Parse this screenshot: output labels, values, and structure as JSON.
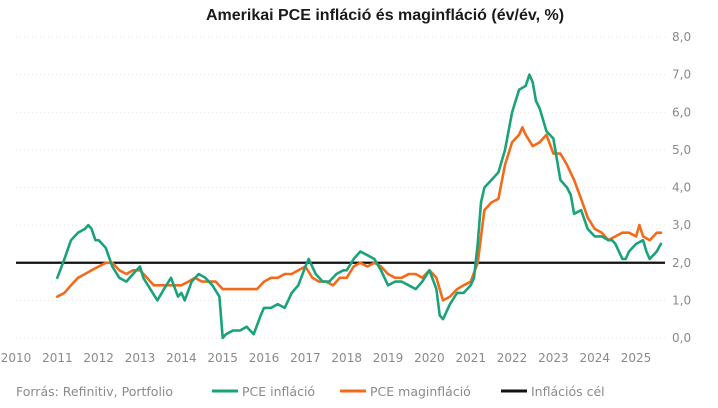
{
  "chart_data": {
    "type": "line",
    "title": "Amerikai PCE infláció és maginfláció (év/év, %)",
    "source": "Forrás: Refinitiv, Portfolio",
    "xlabel": "",
    "ylabel": "",
    "x_ticks": [
      "2010",
      "2011",
      "2012",
      "2013",
      "2014",
      "2015",
      "2016",
      "2017",
      "2018",
      "2019",
      "2020",
      "2021",
      "2022",
      "2023",
      "2024",
      "2025"
    ],
    "y_ticks": [
      "0,0",
      "1,0",
      "2,0",
      "3,0",
      "4,0",
      "5,0",
      "6,0",
      "7,0",
      "8,0"
    ],
    "xlim": [
      2010.0,
      2025.7
    ],
    "ylim": [
      0,
      8
    ],
    "y_axis_position": "right",
    "grid": true,
    "legend_position": "bottom",
    "reference_line": {
      "name": "Inflációs cél",
      "value": 2.0,
      "color": "#111111"
    },
    "series": [
      {
        "name": "PCE infláció",
        "color": "#1aa37a",
        "points": [
          [
            2011.0,
            1.6
          ],
          [
            2011.17,
            2.1
          ],
          [
            2011.33,
            2.6
          ],
          [
            2011.5,
            2.8
          ],
          [
            2011.67,
            2.9
          ],
          [
            2011.75,
            3.0
          ],
          [
            2011.83,
            2.9
          ],
          [
            2011.92,
            2.6
          ],
          [
            2012.0,
            2.6
          ],
          [
            2012.17,
            2.4
          ],
          [
            2012.33,
            1.9
          ],
          [
            2012.5,
            1.6
          ],
          [
            2012.67,
            1.5
          ],
          [
            2012.83,
            1.7
          ],
          [
            2013.0,
            1.9
          ],
          [
            2013.08,
            1.6
          ],
          [
            2013.25,
            1.3
          ],
          [
            2013.42,
            1.0
          ],
          [
            2013.58,
            1.3
          ],
          [
            2013.75,
            1.6
          ],
          [
            2013.92,
            1.1
          ],
          [
            2014.0,
            1.2
          ],
          [
            2014.08,
            1.0
          ],
          [
            2014.25,
            1.5
          ],
          [
            2014.42,
            1.7
          ],
          [
            2014.58,
            1.6
          ],
          [
            2014.75,
            1.4
          ],
          [
            2014.92,
            1.1
          ],
          [
            2015.0,
            0.0
          ],
          [
            2015.08,
            0.1
          ],
          [
            2015.25,
            0.2
          ],
          [
            2015.42,
            0.2
          ],
          [
            2015.58,
            0.3
          ],
          [
            2015.75,
            0.1
          ],
          [
            2015.92,
            0.6
          ],
          [
            2016.0,
            0.8
          ],
          [
            2016.17,
            0.8
          ],
          [
            2016.33,
            0.9
          ],
          [
            2016.5,
            0.8
          ],
          [
            2016.67,
            1.2
          ],
          [
            2016.83,
            1.4
          ],
          [
            2017.0,
            1.9
          ],
          [
            2017.08,
            2.1
          ],
          [
            2017.25,
            1.7
          ],
          [
            2017.42,
            1.5
          ],
          [
            2017.58,
            1.5
          ],
          [
            2017.75,
            1.7
          ],
          [
            2017.92,
            1.8
          ],
          [
            2018.0,
            1.8
          ],
          [
            2018.17,
            2.1
          ],
          [
            2018.33,
            2.3
          ],
          [
            2018.5,
            2.2
          ],
          [
            2018.67,
            2.1
          ],
          [
            2018.83,
            1.8
          ],
          [
            2019.0,
            1.4
          ],
          [
            2019.17,
            1.5
          ],
          [
            2019.33,
            1.5
          ],
          [
            2019.5,
            1.4
          ],
          [
            2019.67,
            1.3
          ],
          [
            2019.83,
            1.5
          ],
          [
            2020.0,
            1.8
          ],
          [
            2020.17,
            1.3
          ],
          [
            2020.25,
            0.6
          ],
          [
            2020.33,
            0.5
          ],
          [
            2020.5,
            0.9
          ],
          [
            2020.67,
            1.2
          ],
          [
            2020.83,
            1.2
          ],
          [
            2021.0,
            1.4
          ],
          [
            2021.08,
            1.6
          ],
          [
            2021.17,
            2.5
          ],
          [
            2021.25,
            3.6
          ],
          [
            2021.33,
            4.0
          ],
          [
            2021.5,
            4.2
          ],
          [
            2021.67,
            4.4
          ],
          [
            2021.83,
            5.0
          ],
          [
            2022.0,
            6.0
          ],
          [
            2022.17,
            6.6
          ],
          [
            2022.33,
            6.7
          ],
          [
            2022.42,
            7.0
          ],
          [
            2022.5,
            6.8
          ],
          [
            2022.58,
            6.3
          ],
          [
            2022.67,
            6.1
          ],
          [
            2022.83,
            5.5
          ],
          [
            2023.0,
            5.3
          ],
          [
            2023.17,
            4.2
          ],
          [
            2023.33,
            4.0
          ],
          [
            2023.42,
            3.8
          ],
          [
            2023.5,
            3.3
          ],
          [
            2023.67,
            3.4
          ],
          [
            2023.83,
            2.9
          ],
          [
            2024.0,
            2.7
          ],
          [
            2024.17,
            2.7
          ],
          [
            2024.33,
            2.6
          ],
          [
            2024.42,
            2.6
          ],
          [
            2024.5,
            2.5
          ],
          [
            2024.67,
            2.1
          ],
          [
            2024.75,
            2.1
          ],
          [
            2024.83,
            2.3
          ],
          [
            2025.0,
            2.5
          ],
          [
            2025.17,
            2.6
          ],
          [
            2025.25,
            2.3
          ],
          [
            2025.33,
            2.1
          ],
          [
            2025.5,
            2.3
          ],
          [
            2025.6,
            2.5
          ]
        ]
      },
      {
        "name": "PCE maginfláció",
        "color": "#f26a1b",
        "points": [
          [
            2011.0,
            1.1
          ],
          [
            2011.17,
            1.2
          ],
          [
            2011.33,
            1.4
          ],
          [
            2011.5,
            1.6
          ],
          [
            2011.67,
            1.7
          ],
          [
            2011.83,
            1.8
          ],
          [
            2012.0,
            1.9
          ],
          [
            2012.17,
            2.0
          ],
          [
            2012.33,
            2.0
          ],
          [
            2012.5,
            1.8
          ],
          [
            2012.67,
            1.7
          ],
          [
            2012.83,
            1.8
          ],
          [
            2013.0,
            1.8
          ],
          [
            2013.17,
            1.6
          ],
          [
            2013.33,
            1.4
          ],
          [
            2013.5,
            1.4
          ],
          [
            2013.67,
            1.4
          ],
          [
            2013.83,
            1.4
          ],
          [
            2014.0,
            1.4
          ],
          [
            2014.17,
            1.5
          ],
          [
            2014.33,
            1.6
          ],
          [
            2014.5,
            1.5
          ],
          [
            2014.67,
            1.5
          ],
          [
            2014.83,
            1.5
          ],
          [
            2015.0,
            1.3
          ],
          [
            2015.17,
            1.3
          ],
          [
            2015.33,
            1.3
          ],
          [
            2015.5,
            1.3
          ],
          [
            2015.67,
            1.3
          ],
          [
            2015.83,
            1.3
          ],
          [
            2016.0,
            1.5
          ],
          [
            2016.17,
            1.6
          ],
          [
            2016.33,
            1.6
          ],
          [
            2016.5,
            1.7
          ],
          [
            2016.67,
            1.7
          ],
          [
            2016.83,
            1.8
          ],
          [
            2017.0,
            1.9
          ],
          [
            2017.17,
            1.6
          ],
          [
            2017.33,
            1.5
          ],
          [
            2017.5,
            1.5
          ],
          [
            2017.67,
            1.4
          ],
          [
            2017.83,
            1.6
          ],
          [
            2018.0,
            1.6
          ],
          [
            2018.17,
            1.9
          ],
          [
            2018.33,
            2.0
          ],
          [
            2018.5,
            1.9
          ],
          [
            2018.67,
            2.0
          ],
          [
            2018.83,
            1.9
          ],
          [
            2019.0,
            1.7
          ],
          [
            2019.17,
            1.6
          ],
          [
            2019.33,
            1.6
          ],
          [
            2019.5,
            1.7
          ],
          [
            2019.67,
            1.7
          ],
          [
            2019.83,
            1.6
          ],
          [
            2020.0,
            1.8
          ],
          [
            2020.17,
            1.6
          ],
          [
            2020.33,
            1.0
          ],
          [
            2020.5,
            1.1
          ],
          [
            2020.67,
            1.3
          ],
          [
            2020.83,
            1.4
          ],
          [
            2021.0,
            1.5
          ],
          [
            2021.17,
            2.0
          ],
          [
            2021.33,
            3.4
          ],
          [
            2021.5,
            3.6
          ],
          [
            2021.67,
            3.7
          ],
          [
            2021.83,
            4.6
          ],
          [
            2022.0,
            5.2
          ],
          [
            2022.17,
            5.4
          ],
          [
            2022.25,
            5.6
          ],
          [
            2022.33,
            5.4
          ],
          [
            2022.5,
            5.1
          ],
          [
            2022.67,
            5.2
          ],
          [
            2022.83,
            5.4
          ],
          [
            2023.0,
            4.9
          ],
          [
            2023.17,
            4.9
          ],
          [
            2023.33,
            4.6
          ],
          [
            2023.5,
            4.2
          ],
          [
            2023.67,
            3.7
          ],
          [
            2023.83,
            3.2
          ],
          [
            2024.0,
            2.9
          ],
          [
            2024.17,
            2.8
          ],
          [
            2024.33,
            2.6
          ],
          [
            2024.5,
            2.7
          ],
          [
            2024.67,
            2.8
          ],
          [
            2024.83,
            2.8
          ],
          [
            2025.0,
            2.7
          ],
          [
            2025.08,
            3.0
          ],
          [
            2025.17,
            2.7
          ],
          [
            2025.33,
            2.6
          ],
          [
            2025.5,
            2.8
          ],
          [
            2025.6,
            2.8
          ]
        ]
      }
    ]
  }
}
